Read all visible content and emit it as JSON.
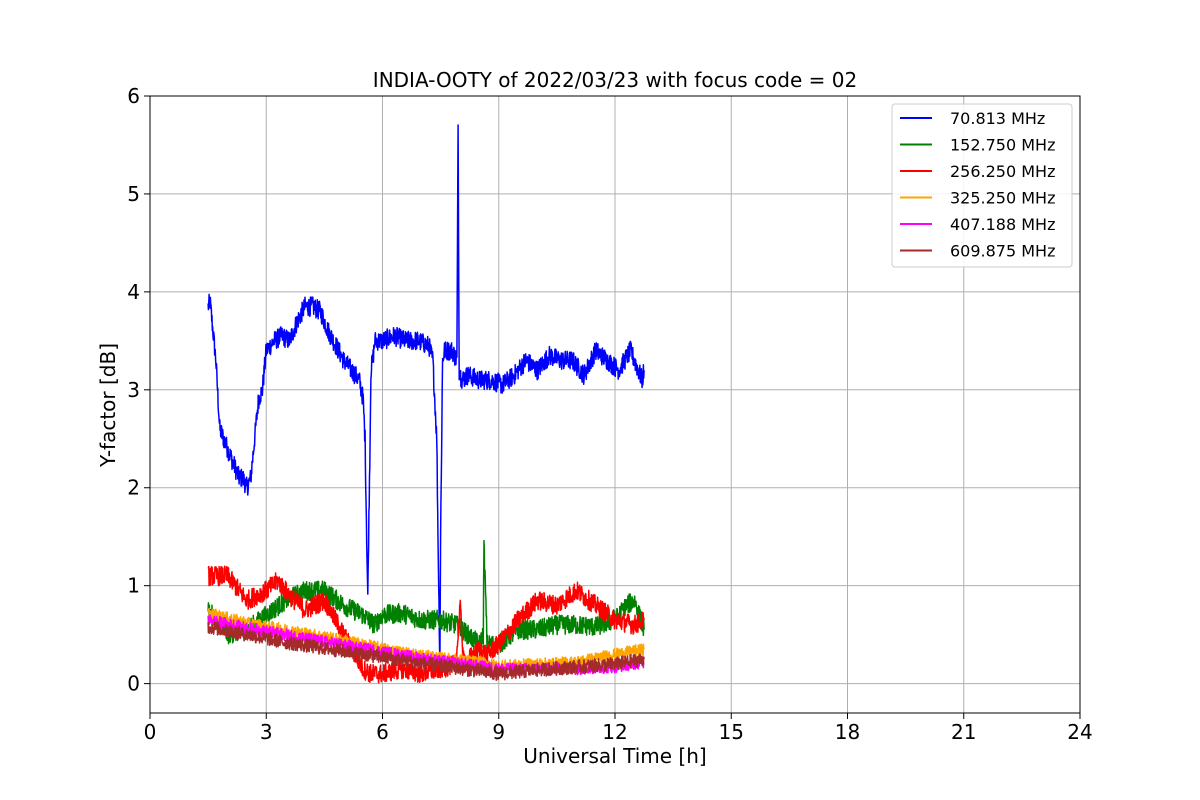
{
  "chart_data": {
    "type": "line",
    "title": "INDIA-OOTY of 2022/03/23 with focus code = 02",
    "xlabel": "Universal Time [h]",
    "ylabel": "Y-factor [dB]",
    "xlim": [
      0,
      24
    ],
    "ylim": [
      -0.3,
      6
    ],
    "xticks": [
      0,
      3,
      6,
      9,
      12,
      15,
      18,
      21,
      24
    ],
    "yticks": [
      0,
      1,
      2,
      3,
      4,
      5,
      6
    ],
    "grid": true,
    "legend_position": "top-right",
    "series": [
      {
        "name": " 70.813 MHz",
        "color": "#0000ff",
        "noise": 0.1,
        "x": [
          1.5,
          1.55,
          1.7,
          1.8,
          1.9,
          2.0,
          2.1,
          2.2,
          2.3,
          2.4,
          2.5,
          2.6,
          2.7,
          2.8,
          2.9,
          3.0,
          3.2,
          3.4,
          3.6,
          3.8,
          4.0,
          4.2,
          4.4,
          4.6,
          4.8,
          5.0,
          5.2,
          5.4,
          5.5,
          5.55,
          5.6,
          5.62,
          5.65,
          5.68,
          5.7,
          5.75,
          5.8,
          6.0,
          6.3,
          6.6,
          6.9,
          7.2,
          7.3,
          7.4,
          7.45,
          7.48,
          7.5,
          7.55,
          7.6,
          7.8,
          7.92,
          7.95,
          7.98,
          8.05,
          8.2,
          8.5,
          8.8,
          9.1,
          9.4,
          9.7,
          10.0,
          10.3,
          10.6,
          10.9,
          11.2,
          11.5,
          11.8,
          12.1,
          12.4,
          12.6,
          12.7,
          12.75
        ],
        "y": [
          3.85,
          3.9,
          3.3,
          2.6,
          2.5,
          2.4,
          2.3,
          2.2,
          2.1,
          2.1,
          2.0,
          2.1,
          2.5,
          2.9,
          3.0,
          3.4,
          3.5,
          3.55,
          3.5,
          3.7,
          3.85,
          3.85,
          3.8,
          3.6,
          3.45,
          3.3,
          3.2,
          3.1,
          2.9,
          2.5,
          1.3,
          0.9,
          1.7,
          2.5,
          3.2,
          3.3,
          3.5,
          3.5,
          3.55,
          3.5,
          3.5,
          3.45,
          3.3,
          2.5,
          1.0,
          0.2,
          1.5,
          3.3,
          3.4,
          3.4,
          3.3,
          5.7,
          3.2,
          3.1,
          3.15,
          3.1,
          3.1,
          3.05,
          3.15,
          3.3,
          3.2,
          3.35,
          3.3,
          3.3,
          3.15,
          3.4,
          3.3,
          3.2,
          3.4,
          3.2,
          3.1,
          3.2
        ]
      },
      {
        "name": "152.750 MHz",
        "color": "#008000",
        "noise": 0.1,
        "x": [
          1.5,
          2.0,
          2.5,
          3.0,
          3.5,
          4.0,
          4.5,
          5.0,
          5.5,
          5.8,
          6.0,
          6.5,
          7.0,
          7.5,
          7.9,
          8.2,
          8.5,
          8.6,
          8.62,
          8.7,
          9.0,
          9.5,
          10.0,
          10.5,
          11.0,
          11.5,
          12.0,
          12.3,
          12.5,
          12.75
        ],
        "y": [
          0.75,
          0.5,
          0.55,
          0.7,
          0.85,
          0.95,
          0.95,
          0.8,
          0.7,
          0.6,
          0.7,
          0.72,
          0.65,
          0.65,
          0.6,
          0.5,
          0.4,
          0.5,
          1.4,
          0.4,
          0.4,
          0.55,
          0.55,
          0.6,
          0.6,
          0.58,
          0.65,
          0.8,
          0.85,
          0.55
        ]
      },
      {
        "name": "256.250 MHz",
        "color": "#ff0000",
        "noise": 0.1,
        "x": [
          1.5,
          2.0,
          2.5,
          3.0,
          3.3,
          3.6,
          4.0,
          4.5,
          5.0,
          5.5,
          5.7,
          6.0,
          6.5,
          7.0,
          7.5,
          7.9,
          8.0,
          8.1,
          8.5,
          8.7,
          9.0,
          9.5,
          10.0,
          10.5,
          11.0,
          11.5,
          12.0,
          12.5,
          12.75
        ],
        "y": [
          1.1,
          1.1,
          0.85,
          0.95,
          1.05,
          0.9,
          0.75,
          0.85,
          0.5,
          0.15,
          0.1,
          0.1,
          0.15,
          0.1,
          0.15,
          0.2,
          0.8,
          0.2,
          0.35,
          0.3,
          0.4,
          0.65,
          0.85,
          0.8,
          0.95,
          0.8,
          0.65,
          0.6,
          0.65
        ]
      },
      {
        "name": "325.250 MHz",
        "color": "#ffa500",
        "noise": 0.06,
        "x": [
          1.5,
          2.5,
          3.5,
          4.5,
          5.5,
          6.5,
          7.5,
          8.5,
          9.0,
          10.0,
          11.0,
          12.0,
          12.75
        ],
        "y": [
          0.72,
          0.62,
          0.55,
          0.48,
          0.4,
          0.32,
          0.26,
          0.22,
          0.18,
          0.2,
          0.22,
          0.3,
          0.35
        ]
      },
      {
        "name": "407.188 MHz",
        "color": "#ff00ff",
        "noise": 0.06,
        "x": [
          1.5,
          2.5,
          3.5,
          4.5,
          5.5,
          6.5,
          7.5,
          8.5,
          9.0,
          10.0,
          11.0,
          12.0,
          12.75
        ],
        "y": [
          0.65,
          0.57,
          0.5,
          0.43,
          0.36,
          0.29,
          0.23,
          0.18,
          0.15,
          0.15,
          0.15,
          0.17,
          0.22
        ]
      },
      {
        "name": "609.875 MHz",
        "color": "#a52a2a",
        "noise": 0.07,
        "x": [
          1.5,
          2.5,
          3.5,
          4.5,
          5.5,
          6.5,
          7.5,
          8.5,
          9.0,
          10.0,
          11.0,
          12.0,
          12.75
        ],
        "y": [
          0.58,
          0.5,
          0.42,
          0.36,
          0.3,
          0.24,
          0.18,
          0.13,
          0.1,
          0.14,
          0.17,
          0.2,
          0.25
        ]
      }
    ]
  }
}
